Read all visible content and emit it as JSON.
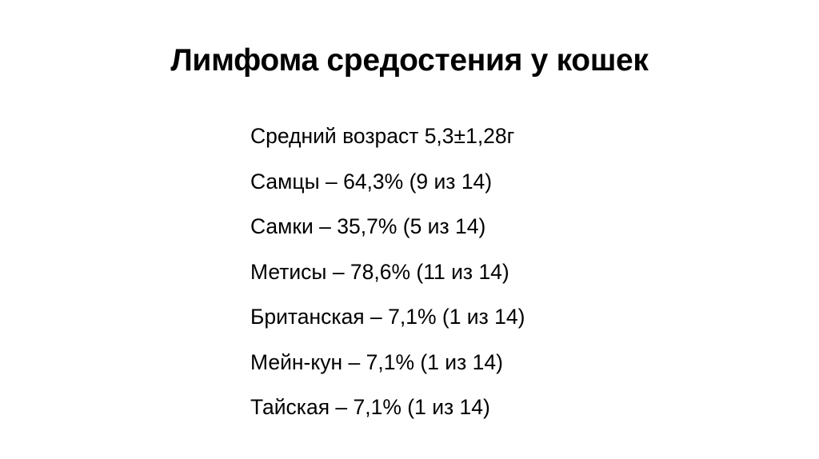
{
  "slide": {
    "title": "Лимфома средостения у кошек",
    "items": [
      "Средний возраст 5,3±1,28г",
      "Самцы – 64,3% (9 из 14)",
      "Самки – 35,7% (5 из 14)",
      "Метисы – 78,6% (11 из 14)",
      "Британская – 7,1% (1 из 14)",
      "Мейн-кун – 7,1% (1 из 14)",
      "Тайская – 7,1% (1 из 14)"
    ]
  }
}
